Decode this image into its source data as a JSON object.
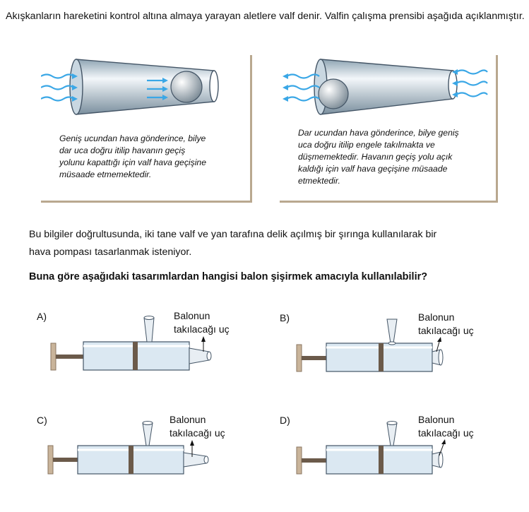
{
  "intro_text": "Akışkanların hareketini kontrol altına almaya yarayan aletlere valf denir. Valfin çalışma prensibi aşağıda açıklanmıştır.",
  "panels": [
    {
      "caption_lines": [
        "Geniş ucundan hava gönderince, bilye",
        "dar uca doğru itilip havanın geçiş",
        "yolunu kapattığı için valf hava geçişine",
        "müsaade etmemektedir."
      ]
    },
    {
      "caption_lines": [
        "Dar ucundan hava gönderince, bilye geniş",
        "uca doğru itilip engele takılmakta ve",
        "düşmemektedir. Havanın geçiş yolu açık",
        "kaldığı için valf hava geçişine müsaade",
        "etmektedir."
      ]
    }
  ],
  "paragraph_lines": [
    "Bu bilgiler doğrultusunda, iki tane valf ve yan tarafına delik açılmış bir şırınga kullanılarak bir",
    "hava pompası tasarlanmak isteniyor."
  ],
  "question": "Buna göre aşağıdaki tasarımlardan hangisi balon şişirmek amacıyla kullanılabilir?",
  "options": [
    {
      "letter": "A)",
      "tip_label_line1": "Balonun",
      "tip_label_line2": "takılacağı uç"
    },
    {
      "letter": "B)",
      "tip_label_line1": "Balonun",
      "tip_label_line2": "takılacağı uç"
    },
    {
      "letter": "C)",
      "tip_label_line1": "Balonun",
      "tip_label_line2": "takılacağı uç"
    },
    {
      "letter": "D)",
      "tip_label_line1": "Balonun",
      "tip_label_line2": "takılacağı uç"
    }
  ],
  "colors": {
    "panel_border": "#b9a88f",
    "air_arrow": "#3aa7e6",
    "cylinder_fill": "#dbe8f2",
    "cylinder_stroke": "#445566",
    "plunger": "#6b5a4a",
    "handle": "#c9b49a"
  }
}
